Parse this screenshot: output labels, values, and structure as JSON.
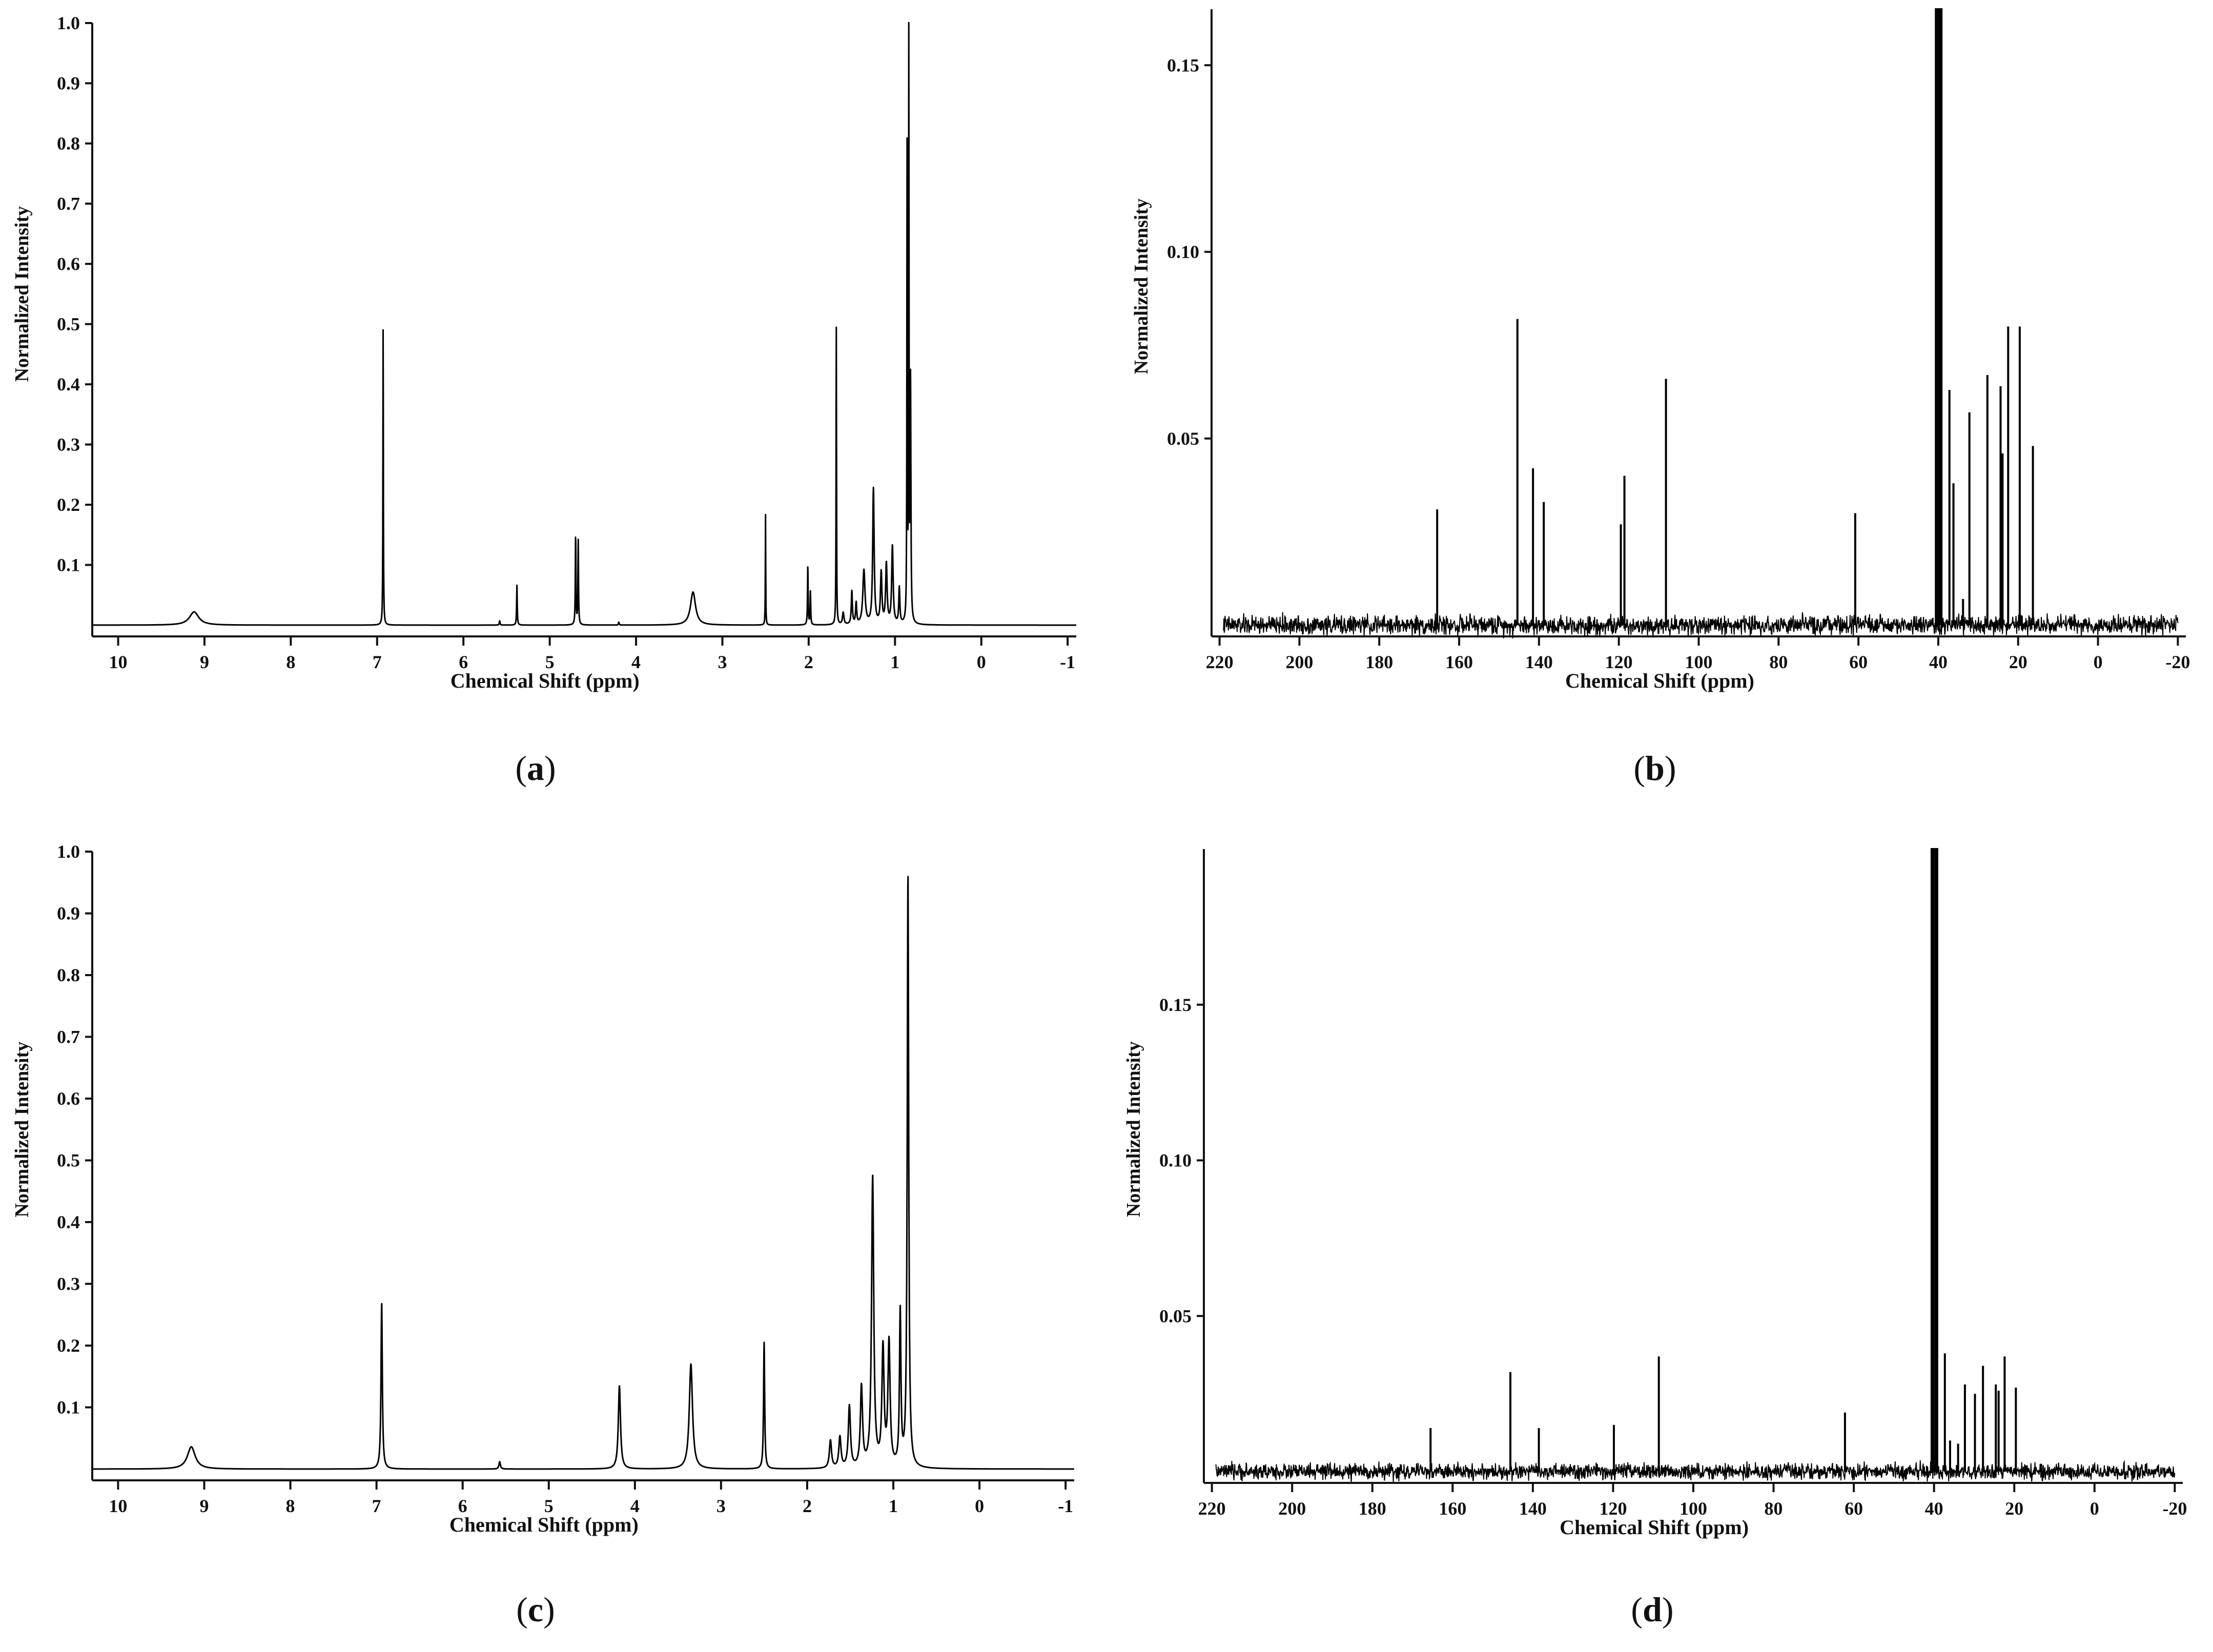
{
  "panels": [
    {
      "id": "a",
      "caption": "a",
      "chart_data": {
        "type": "line",
        "kind": "1H-NMR spectrum",
        "xlabel": "Chemical Shift (ppm)",
        "ylabel": "Normalized Intensity",
        "xlim": [
          10.3,
          -1.1
        ],
        "ylim": [
          0,
          1.0
        ],
        "x_reversed": true,
        "xticks": [
          10,
          9,
          8,
          7,
          6,
          5,
          4,
          3,
          2,
          1,
          0,
          -1
        ],
        "yticks": [
          0.1,
          0.2,
          0.3,
          0.4,
          0.5,
          0.6,
          0.7,
          0.8,
          0.9,
          1.0
        ],
        "ytick_labels": [
          "0.1",
          "0.2",
          "0.3",
          "0.4",
          "0.5",
          "0.6",
          "0.7",
          "0.8",
          "0.9",
          "1.0"
        ],
        "grid": false,
        "peaks": [
          {
            "x": 9.12,
            "y": 0.022,
            "width": 0.13
          },
          {
            "x": 6.93,
            "y": 0.5,
            "width": 0.006
          },
          {
            "x": 5.58,
            "y": 0.007,
            "width": 0.01
          },
          {
            "x": 5.38,
            "y": 0.067,
            "width": 0.008
          },
          {
            "x": 4.7,
            "y": 0.15,
            "width": 0.008
          },
          {
            "x": 4.67,
            "y": 0.14,
            "width": 0.008
          },
          {
            "x": 4.2,
            "y": 0.005,
            "width": 0.01
          },
          {
            "x": 3.34,
            "y": 0.055,
            "width": 0.07
          },
          {
            "x": 2.5,
            "y": 0.185,
            "width": 0.005
          },
          {
            "x": 2.01,
            "y": 0.1,
            "width": 0.008
          },
          {
            "x": 1.98,
            "y": 0.055,
            "width": 0.008
          },
          {
            "x": 1.68,
            "y": 0.495,
            "width": 0.006
          },
          {
            "x": 1.6,
            "y": 0.02,
            "width": 0.02
          },
          {
            "x": 1.5,
            "y": 0.055,
            "width": 0.015
          },
          {
            "x": 1.45,
            "y": 0.035,
            "width": 0.015
          },
          {
            "x": 1.36,
            "y": 0.09,
            "width": 0.03
          },
          {
            "x": 1.25,
            "y": 0.225,
            "width": 0.02
          },
          {
            "x": 1.16,
            "y": 0.085,
            "width": 0.02
          },
          {
            "x": 1.1,
            "y": 0.1,
            "width": 0.02
          },
          {
            "x": 1.03,
            "y": 0.13,
            "width": 0.02
          },
          {
            "x": 0.95,
            "y": 0.06,
            "width": 0.015
          },
          {
            "x": 0.86,
            "y": 0.78,
            "width": 0.006
          },
          {
            "x": 0.84,
            "y": 0.99,
            "width": 0.006
          },
          {
            "x": 0.82,
            "y": 0.4,
            "width": 0.01
          }
        ]
      }
    },
    {
      "id": "b",
      "caption": "b",
      "chart_data": {
        "type": "line",
        "kind": "13C-NMR spectrum",
        "xlabel": "Chemical Shift (ppm)",
        "ylabel": "Normalized Intensity",
        "xlim": [
          222,
          -22
        ],
        "ylim": [
          0,
          0.165
        ],
        "x_reversed": true,
        "xticks": [
          220,
          200,
          180,
          160,
          140,
          120,
          100,
          80,
          60,
          40,
          20,
          0,
          -20
        ],
        "yticks": [
          0.05,
          0.1,
          0.15
        ],
        "ytick_labels": [
          "0.05",
          "0.10",
          "0.15"
        ],
        "grid": false,
        "data_range": [
          219,
          -20
        ],
        "noise_level": 0.0022,
        "peaks": [
          {
            "x": 165.5,
            "y": 0.031
          },
          {
            "x": 145.4,
            "y": 0.082
          },
          {
            "x": 141.5,
            "y": 0.042
          },
          {
            "x": 138.8,
            "y": 0.033
          },
          {
            "x": 119.5,
            "y": 0.027
          },
          {
            "x": 118.6,
            "y": 0.04
          },
          {
            "x": 108.2,
            "y": 0.066
          },
          {
            "x": 60.8,
            "y": 0.03
          },
          {
            "x": 40.6,
            "y": 0.25
          },
          {
            "x": 40.1,
            "y": 0.25
          },
          {
            "x": 39.6,
            "y": 0.25
          },
          {
            "x": 39.2,
            "y": 0.25
          },
          {
            "x": 37.2,
            "y": 0.063
          },
          {
            "x": 36.2,
            "y": 0.038
          },
          {
            "x": 33.8,
            "y": 0.007
          },
          {
            "x": 32.2,
            "y": 0.057
          },
          {
            "x": 27.7,
            "y": 0.067
          },
          {
            "x": 24.4,
            "y": 0.064
          },
          {
            "x": 23.9,
            "y": 0.046
          },
          {
            "x": 22.5,
            "y": 0.08
          },
          {
            "x": 19.6,
            "y": 0.08
          },
          {
            "x": 16.3,
            "y": 0.048
          }
        ]
      }
    },
    {
      "id": "c",
      "caption": "c",
      "chart_data": {
        "type": "line",
        "kind": "1H-NMR spectrum",
        "xlabel": "Chemical Shift (ppm)",
        "ylabel": "Normalized Intensity",
        "xlim": [
          10.3,
          -1.1
        ],
        "ylim": [
          0,
          1.0
        ],
        "x_reversed": true,
        "xticks": [
          10,
          9,
          8,
          7,
          6,
          5,
          4,
          3,
          2,
          1,
          0,
          -1
        ],
        "yticks": [
          0.1,
          0.2,
          0.3,
          0.4,
          0.5,
          0.6,
          0.7,
          0.8,
          0.9,
          1.0
        ],
        "ytick_labels": [
          "0.1",
          "0.2",
          "0.3",
          "0.4",
          "0.5",
          "0.6",
          "0.7",
          "0.8",
          "0.9",
          "1.0"
        ],
        "grid": false,
        "peaks": [
          {
            "x": 9.15,
            "y": 0.036,
            "width": 0.11
          },
          {
            "x": 6.94,
            "y": 0.27,
            "width": 0.018
          },
          {
            "x": 5.57,
            "y": 0.012,
            "width": 0.02
          },
          {
            "x": 4.18,
            "y": 0.135,
            "width": 0.03
          },
          {
            "x": 3.35,
            "y": 0.17,
            "width": 0.045
          },
          {
            "x": 2.5,
            "y": 0.205,
            "width": 0.015
          },
          {
            "x": 1.73,
            "y": 0.045,
            "width": 0.03
          },
          {
            "x": 1.62,
            "y": 0.05,
            "width": 0.03
          },
          {
            "x": 1.51,
            "y": 0.1,
            "width": 0.03
          },
          {
            "x": 1.37,
            "y": 0.13,
            "width": 0.03
          },
          {
            "x": 1.24,
            "y": 0.47,
            "width": 0.03
          },
          {
            "x": 1.12,
            "y": 0.19,
            "width": 0.03
          },
          {
            "x": 1.05,
            "y": 0.2,
            "width": 0.03
          },
          {
            "x": 0.92,
            "y": 0.25,
            "width": 0.02
          },
          {
            "x": 0.83,
            "y": 0.96,
            "width": 0.02
          }
        ]
      }
    },
    {
      "id": "d",
      "caption": "d",
      "chart_data": {
        "type": "line",
        "kind": "13C-NMR spectrum",
        "xlabel": "Chemical Shift (ppm)",
        "ylabel": "Normalized Intensity",
        "xlim": [
          222,
          -22
        ],
        "ylim": [
          0,
          0.2
        ],
        "x_reversed": true,
        "xticks": [
          220,
          200,
          180,
          160,
          140,
          120,
          100,
          80,
          60,
          40,
          20,
          0,
          -20
        ],
        "yticks": [
          0.05,
          0.1,
          0.15
        ],
        "ytick_labels": [
          "0.05",
          "0.10",
          "0.15"
        ],
        "grid": false,
        "data_range": [
          219,
          -20
        ],
        "noise_level": 0.0022,
        "peaks": [
          {
            "x": 165.5,
            "y": 0.014
          },
          {
            "x": 145.6,
            "y": 0.032
          },
          {
            "x": 138.5,
            "y": 0.014
          },
          {
            "x": 119.8,
            "y": 0.015
          },
          {
            "x": 108.6,
            "y": 0.037
          },
          {
            "x": 62.2,
            "y": 0.019
          },
          {
            "x": 40.6,
            "y": 0.3
          },
          {
            "x": 40.1,
            "y": 0.3
          },
          {
            "x": 39.6,
            "y": 0.3
          },
          {
            "x": 39.2,
            "y": 0.3
          },
          {
            "x": 37.3,
            "y": 0.038
          },
          {
            "x": 36.0,
            "y": 0.01
          },
          {
            "x": 34.0,
            "y": 0.009
          },
          {
            "x": 32.3,
            "y": 0.028
          },
          {
            "x": 29.8,
            "y": 0.025
          },
          {
            "x": 27.8,
            "y": 0.034
          },
          {
            "x": 24.6,
            "y": 0.028
          },
          {
            "x": 23.9,
            "y": 0.026
          },
          {
            "x": 22.4,
            "y": 0.037
          },
          {
            "x": 19.6,
            "y": 0.027
          }
        ]
      }
    }
  ]
}
